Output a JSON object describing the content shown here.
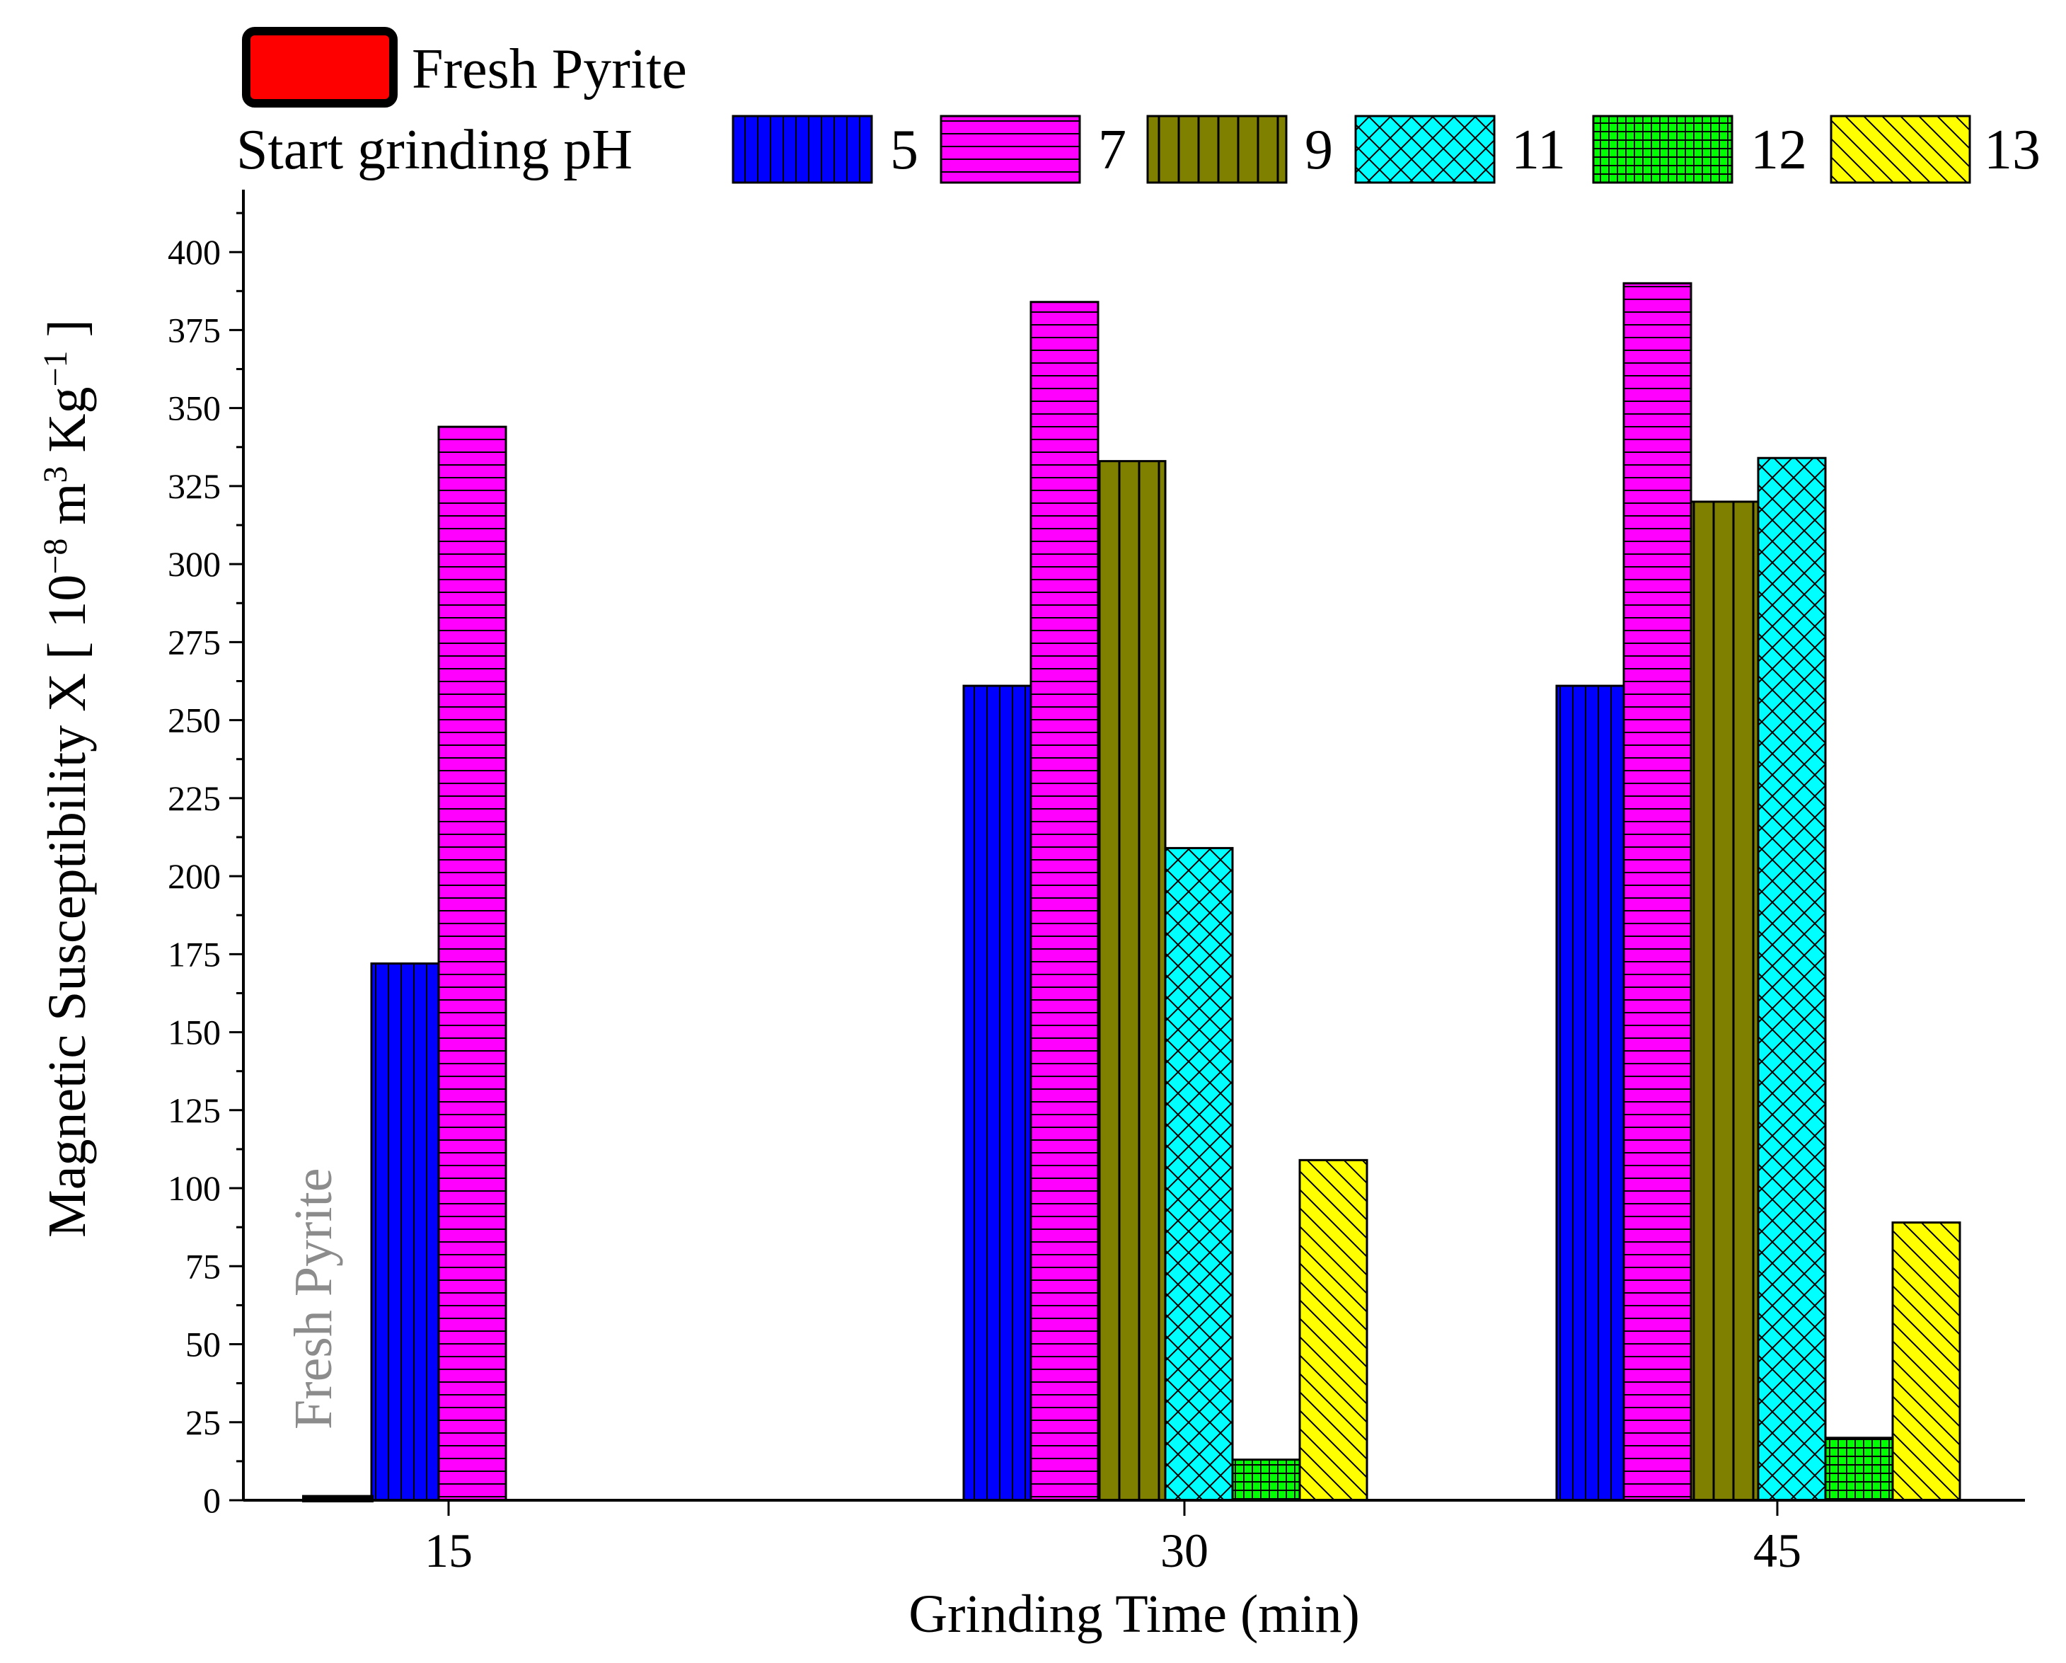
{
  "chart_data": {
    "type": "bar",
    "title": "",
    "xlabel": "Grinding Time (min)",
    "ylabel": {
      "main": "Magnetic Susceptibility X [ 10",
      "exp1": "−8",
      "mid": " m",
      "exp2": "3",
      "tail": " Kg",
      "exp3": "−1",
      "close": " ]"
    },
    "categories": [
      "15",
      "30",
      "45"
    ],
    "ylim": [
      0,
      420
    ],
    "yticks": [
      0,
      25,
      50,
      75,
      100,
      125,
      150,
      175,
      200,
      225,
      250,
      275,
      300,
      325,
      350,
      375,
      400
    ],
    "fresh": {
      "name": "Fresh Pyrite",
      "value": 1,
      "color": "#ff0000",
      "annotation": "Fresh Pyrite"
    },
    "legend": {
      "fresh_label": "Fresh Pyrite",
      "group_label": "Start  grinding pH"
    },
    "series": [
      {
        "name": "5",
        "color": "#0000ff",
        "pattern": "vertical",
        "values": [
          172,
          261,
          261
        ]
      },
      {
        "name": "7",
        "color": "#ff00ff",
        "pattern": "horizontal",
        "values": [
          344,
          384,
          390
        ]
      },
      {
        "name": "9",
        "color": "#808000",
        "pattern": "vertical-wide",
        "values": [
          null,
          333,
          320
        ]
      },
      {
        "name": "11",
        "color": "#00ffff",
        "pattern": "crosshatch",
        "values": [
          null,
          209,
          334
        ]
      },
      {
        "name": "12",
        "color": "#00ff00",
        "pattern": "grid",
        "values": [
          null,
          13,
          20
        ]
      },
      {
        "name": "13",
        "color": "#ffff00",
        "pattern": "diagonal",
        "values": [
          null,
          109,
          89
        ]
      }
    ]
  }
}
